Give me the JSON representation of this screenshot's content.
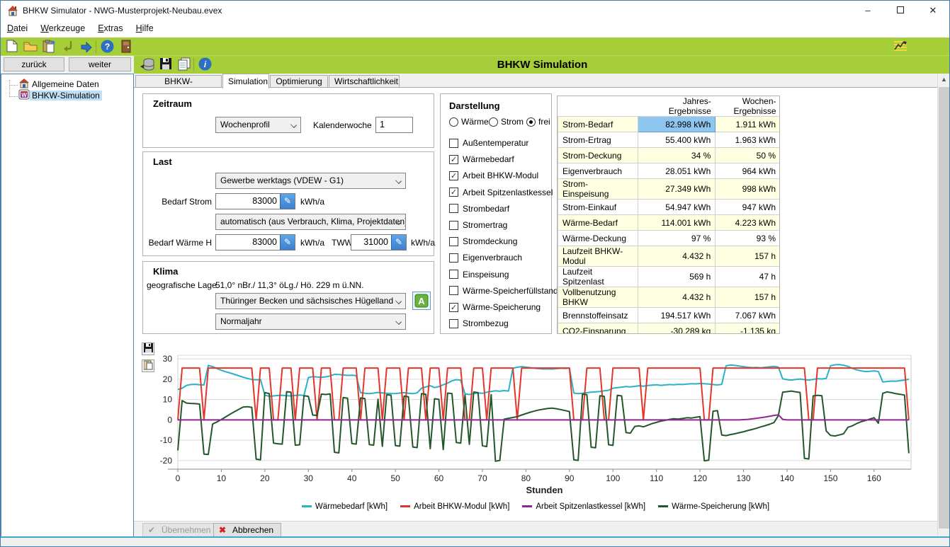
{
  "window": {
    "title": "BHKW Simulator - NWG-Musterprojekt-Neubau.evex",
    "controls": {
      "minimize": "–",
      "maximize": "❐",
      "close": "✕"
    }
  },
  "menu": {
    "items": [
      "Datei",
      "Werkzeuge",
      "Extras",
      "Hilfe"
    ]
  },
  "nav": {
    "back_label": "zurück",
    "next_label": "weiter",
    "title": "BHKW Simulation"
  },
  "tree": {
    "items": [
      {
        "label": "Allgemeine Daten",
        "icon": "house-icon",
        "selected": false
      },
      {
        "label": "BHKW-Simulation",
        "icon": "bhkw-module-icon",
        "selected": true
      }
    ]
  },
  "tabs": {
    "items": [
      "BHKW-Beschreibung",
      "Simulation",
      "Optimierung",
      "Wirtschaftlichkeit"
    ],
    "active_index": 1
  },
  "zeitraum": {
    "title": "Zeitraum",
    "profil_value": "Wochenprofil",
    "kalenderwoche_label": "Kalenderwoche",
    "kalenderwoche_value": "1"
  },
  "last": {
    "title": "Last",
    "strom_profil_value": "Gewerbe werktags (VDEW - G1)",
    "bedarf_strom_label": "Bedarf Strom",
    "bedarf_strom_value": "83000",
    "bedarf_strom_unit": "kWh/a",
    "waerme_profil_value": "automatisch (aus Verbrauch, Klima, Projektdaten)",
    "bedarf_waerme_label": "Bedarf Wärme H",
    "bedarf_waerme_value": "83000",
    "bedarf_waerme_unit": "kWh/a",
    "tww_label": "TWW",
    "tww_value": "31000",
    "tww_unit": "kWh/a"
  },
  "klima": {
    "title": "Klima",
    "lage_label": "geografische Lage",
    "lage_value": "51,0° nBr./ 11,3° öLg./ Hö. 229 m ü.NN.",
    "region_value": "Thüringer Becken und sächsisches Hügelland",
    "map_button_label": "A",
    "jahr_value": "Normaljahr"
  },
  "darstellung": {
    "title": "Darstellung",
    "radios": [
      {
        "label": "Wärme",
        "selected": false
      },
      {
        "label": "Strom",
        "selected": false
      },
      {
        "label": "frei",
        "selected": true
      }
    ],
    "checkboxes": [
      {
        "label": "Außentemperatur",
        "checked": false
      },
      {
        "label": "Wärmebedarf",
        "checked": true
      },
      {
        "label": "Arbeit BHKW-Modul",
        "checked": true
      },
      {
        "label": "Arbeit Spitzenlastkessel",
        "checked": true
      },
      {
        "label": "Strombedarf",
        "checked": false
      },
      {
        "label": "Stromertrag",
        "checked": false
      },
      {
        "label": "Stromdeckung",
        "checked": false
      },
      {
        "label": "Eigenverbrauch",
        "checked": false
      },
      {
        "label": "Einspeisung",
        "checked": false
      },
      {
        "label": "Wärme-Speicherfüllstand",
        "checked": false
      },
      {
        "label": "Wärme-Speicherung",
        "checked": true
      },
      {
        "label": "Strombezug",
        "checked": false
      }
    ]
  },
  "results": {
    "columns": [
      "Jahres-Ergebnisse",
      "Wochen-Ergebnisse"
    ],
    "rows": [
      [
        "Strom-Bedarf",
        "82.998 kWh",
        "1.911 kWh"
      ],
      [
        "Strom-Ertrag",
        "55.400 kWh",
        "1.963 kWh"
      ],
      [
        "Strom-Deckung",
        "34 %",
        "50 %"
      ],
      [
        "Eigenverbrauch",
        "28.051 kWh",
        "964 kWh"
      ],
      [
        "Strom-Einspeisung",
        "27.349 kWh",
        "998 kWh"
      ],
      [
        "Strom-Einkauf",
        "54.947 kWh",
        "947 kWh"
      ],
      [
        "Wärme-Bedarf",
        "114.001 kWh",
        "4.223 kWh"
      ],
      [
        "Wärme-Deckung",
        "97 %",
        "93 %"
      ],
      [
        "Laufzeit BHKW-Modul",
        "4.432 h",
        "157 h"
      ],
      [
        "Laufzeit Spitzenlast",
        "569 h",
        "47 h"
      ],
      [
        "Vollbenutzung BHKW",
        "4.432 h",
        "157 h"
      ],
      [
        "Brennstoffeinsatz",
        "194.517 kWh",
        "7.067 kWh"
      ],
      [
        "CO2-Einsparung",
        "-30.289 kg",
        "-1.135 kg"
      ]
    ],
    "selected_cell": {
      "row": 0,
      "col": 1
    }
  },
  "footer": {
    "apply_label": "Übernehmen",
    "cancel_label": "Abbrechen"
  },
  "colors": {
    "accent_green": "#a5ce39",
    "row_yellow": "#ffffe1",
    "cell_selected": "#8ec6f0"
  },
  "chart_data": {
    "type": "line",
    "xlabel": "Stunden",
    "ylabel": "",
    "xlim": [
      0,
      168.5
    ],
    "ylim": [
      -24.2,
      31.8
    ],
    "xticks": [
      0,
      10,
      20,
      30,
      40,
      50,
      60,
      70,
      80,
      90,
      100,
      110,
      120,
      130,
      140,
      150,
      160
    ],
    "ygrid": [
      -20,
      -10,
      0,
      10,
      20,
      30
    ],
    "grid": true,
    "legend_position": "bottom",
    "draw_order": [
      0,
      1,
      3,
      2
    ],
    "series": [
      {
        "name": "Wärmebedarf [kWh]",
        "color": "#29b2c3",
        "values": [
          15.0,
          15.6,
          17.0,
          17.4,
          17.5,
          17.3,
          17.2,
          26.8,
          26.2,
          25.3,
          24.4,
          23.7,
          23.1,
          22.4,
          21.7,
          21.0,
          20.4,
          19.9,
          19.7,
          19.9,
          12.2,
          11.6,
          11.8,
          12.0,
          12.1,
          11.9,
          11.8,
          12.0,
          12.2,
          12.0,
          20.8,
          21.3,
          21.1,
          20.9,
          21.2,
          21.6,
          22.4,
          22.3,
          22.1,
          21.9,
          22.0,
          21.8,
          13.4,
          13.1,
          12.9,
          13.2,
          13.5,
          13.3,
          13.1,
          12.9,
          13.0,
          13.2,
          13.4,
          13.1,
          12.9,
          13.3,
          15.6,
          16.2,
          16.8,
          15.9,
          16.4,
          17.3,
          18.1,
          19.2,
          19.8,
          19.5,
          12.8,
          12.5,
          12.9,
          13.3,
          13.1,
          13.6,
          14.0,
          14.3,
          14.1,
          14.4,
          14.2,
          25.4,
          25.9,
          26.2,
          26.0,
          25.7,
          25.4,
          25.2,
          25.0,
          25.1,
          25.0,
          25.2,
          25.4,
          25.3,
          25.5,
          13.2,
          12.9,
          13.1,
          13.4,
          13.6,
          13.8,
          14.0,
          14.3,
          14.6,
          15.6,
          15.9,
          16.1,
          16.4,
          16.2,
          16.5,
          16.8,
          16.6,
          16.9,
          17.1,
          17.3,
          17.0,
          17.2,
          17.4,
          17.3,
          17.5,
          17.4,
          17.6,
          17.8,
          17.7,
          17.9,
          17.8,
          17.6,
          17.4,
          17.2,
          17.5,
          26.6,
          27.0,
          26.8,
          26.5,
          26.2,
          25.9,
          25.7,
          25.8,
          25.6,
          25.9,
          26.1,
          26.3,
          26.0,
          20.2,
          19.8,
          19.6,
          19.9,
          20.1,
          19.8,
          19.6,
          19.9,
          20.3,
          20.1,
          20.4,
          26.6,
          27.1,
          27.2,
          26.9,
          26.3,
          25.4,
          24.6,
          24.1,
          23.8,
          23.9,
          24.1,
          23.8,
          18.7,
          18.9,
          19.1,
          19.0,
          19.3,
          19.6,
          20.0
        ]
      },
      {
        "name": "Arbeit BHKW-Modul [kWh]",
        "color": "#e5352b",
        "values": [
          0,
          25.5,
          25.5,
          25.5,
          25.5,
          25.5,
          0,
          25.5,
          25.5,
          25.5,
          25.5,
          25.5,
          25.5,
          25.5,
          25.5,
          25.5,
          25.5,
          25.5,
          0,
          25.5,
          25.5,
          25.5,
          0,
          0,
          25.5,
          25.5,
          25.5,
          0,
          25.5,
          25.5,
          25.5,
          25.5,
          0,
          25.5,
          25.5,
          25.5,
          0,
          0,
          25.5,
          25.5,
          25.5,
          25.5,
          0,
          25.5,
          25.5,
          25.5,
          25.5,
          0,
          25.5,
          25.5,
          25.5,
          25.5,
          0,
          25.5,
          25.5,
          25.5,
          25.5,
          0,
          25.5,
          25.5,
          25.5,
          0,
          25.5,
          25.5,
          25.5,
          25.5,
          0,
          0,
          25.5,
          25.5,
          25.5,
          0,
          25.5,
          25.5,
          25.5,
          25.5,
          25.5,
          25.5,
          0,
          25.5,
          25.5,
          25.5,
          25.5,
          25.5,
          25.5,
          25.5,
          25.5,
          25.5,
          25.5,
          25.5,
          25.5,
          0,
          0,
          0,
          25.5,
          25.5,
          25.5,
          25.5,
          0,
          0,
          25.5,
          25.5,
          25.5,
          25.5,
          25.5,
          25.5,
          25.5,
          0,
          25.5,
          25.5,
          25.5,
          25.5,
          25.5,
          25.5,
          25.5,
          25.5,
          25.5,
          25.5,
          25.5,
          25.5,
          25.5,
          0,
          0,
          25.5,
          25.5,
          25.5,
          25.5,
          25.5,
          25.5,
          25.5,
          25.5,
          25.5,
          25.5,
          25.5,
          25.5,
          25.5,
          25.5,
          25.5,
          25.5,
          25.5,
          25.5,
          25.5,
          25.5,
          25.5,
          25.5,
          0,
          0,
          25.5,
          25.5,
          25.5,
          25.5,
          25.5,
          25.5,
          25.5,
          25.5,
          25.5,
          25.5,
          25.5,
          25.5,
          25.5,
          25.5,
          25.5,
          25.5,
          25.5,
          25.5,
          25.5,
          25.5,
          25.5,
          0
        ]
      },
      {
        "name": "Arbeit Spitzenlastkessel [kWh]",
        "color": "#8e288e",
        "points": [
          [
            0,
            0
          ],
          [
            129,
            0
          ],
          [
            131,
            0.3
          ],
          [
            133,
            0.8
          ],
          [
            135,
            1.4
          ],
          [
            137,
            2.2
          ],
          [
            138,
            2.5
          ],
          [
            139,
            0.3
          ],
          [
            140,
            0
          ],
          [
            168,
            0
          ]
        ]
      },
      {
        "name": "Wärme-Speicherung [kWh]",
        "color": "#23572b",
        "values": [
          -15.0,
          9.5,
          8.3,
          8.1,
          8.0,
          7.8,
          -16.8,
          -17.0,
          -2.0,
          -1.0,
          0.2,
          1.5,
          2.8,
          4.0,
          5.2,
          6.3,
          6.5,
          6.2,
          -19.3,
          -19.6,
          13.4,
          13.0,
          -11.4,
          -11.7,
          -11.9,
          13.9,
          13.6,
          -12.4,
          -12.2,
          11.9,
          11.6,
          2.4,
          2.2,
          12.7,
          12.5,
          12.8,
          -15.9,
          -16.2,
          11.0,
          10.7,
          -11.6,
          -11.9,
          10.8,
          10.5,
          -12.1,
          -12.4,
          10.2,
          -13.0,
          12.4,
          12.1,
          -12.6,
          -12.9,
          11.7,
          11.4,
          -13.3,
          -13.6,
          12.9,
          12.6,
          -14.1,
          10.4,
          10.1,
          -14.6,
          13.2,
          12.9,
          -11.1,
          -11.4,
          12.2,
          -12.0,
          13.7,
          13.4,
          -12.7,
          -13.1,
          12.4,
          -20.3,
          -19.9,
          0.4,
          0.8,
          1.2,
          1.6,
          2.4,
          3.1,
          3.8,
          4.4,
          4.9,
          5.3,
          5.6,
          5.8,
          5.5,
          5.1,
          4.6,
          4.1,
          -19.6,
          -19.9,
          12.7,
          12.4,
          -13.4,
          -13.7,
          11.9,
          11.6,
          -12.2,
          -12.5,
          12.1,
          11.8,
          -6.2,
          -6.5,
          -3.2,
          -2.9,
          -3.4,
          -2.6,
          -1.8,
          -1.2,
          -0.6,
          -0.2,
          0.3,
          0.6,
          0.4,
          0.7,
          1.1,
          0.9,
          1.3,
          1.6,
          -20.1,
          -19.8,
          4.3,
          4.6,
          -7.4,
          -7.7,
          -7.2,
          -6.8,
          -6.3,
          -5.8,
          -5.2,
          -4.7,
          -4.1,
          -3.4,
          -2.8,
          -2.1,
          -1.3,
          2.1,
          13.6,
          13.9,
          14.2,
          13.8,
          13.5,
          -18.9,
          -19.2,
          11.8,
          12.1,
          11.9,
          -5.4,
          -7.6,
          -7.9,
          -7.4,
          -6.8,
          -3.6,
          -2.9,
          -1.8,
          -0.9,
          -0.3,
          0.4,
          1.1,
          -1.6,
          13.1,
          13.8,
          13.4,
          12.9,
          12.6,
          12.2,
          -16.4
        ]
      }
    ]
  }
}
